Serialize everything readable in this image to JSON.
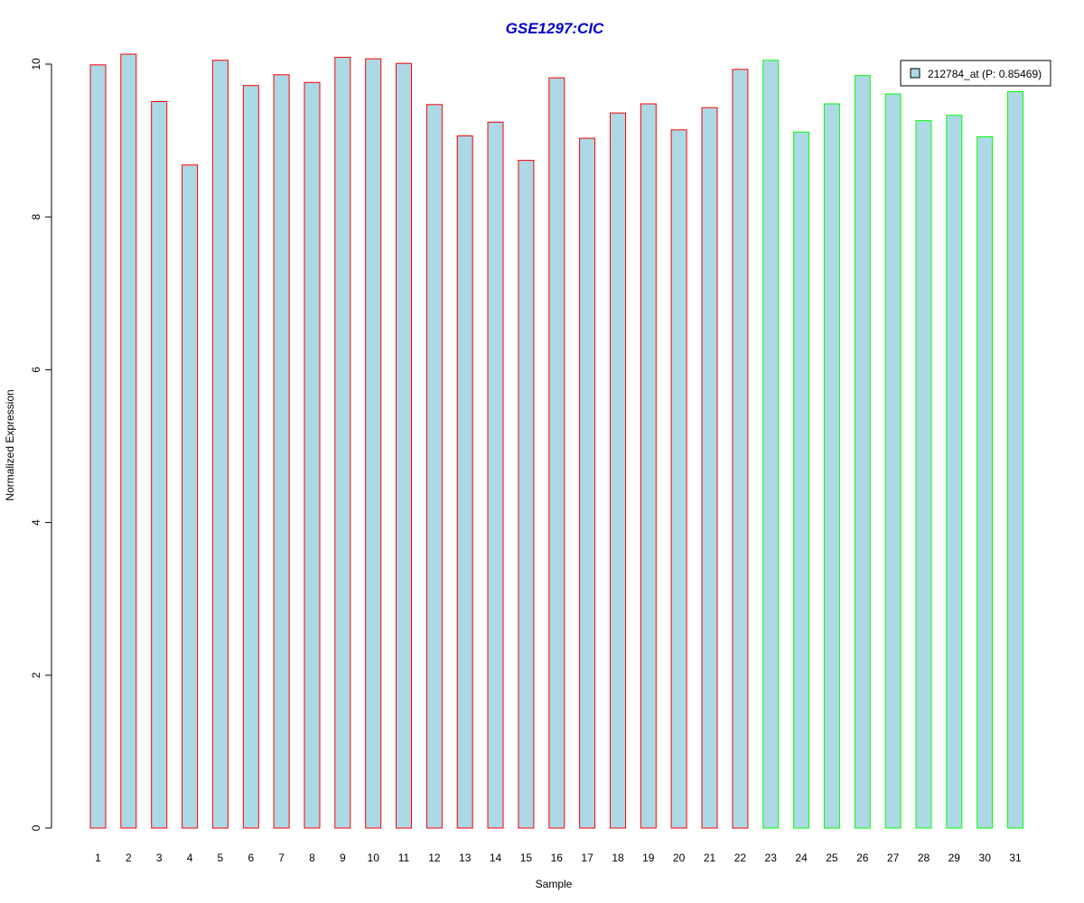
{
  "chart_data": {
    "type": "bar",
    "title": "GSE1297:CIC",
    "xlabel": "Sample",
    "ylabel": "Normalized Expression",
    "ylim": [
      0,
      10
    ],
    "yticks": [
      0,
      2,
      4,
      6,
      8,
      10
    ],
    "grid": false,
    "legend_position": "top-right",
    "legend_label": "212784_at (P: 0.85469)",
    "categories": [
      "1",
      "2",
      "3",
      "4",
      "5",
      "6",
      "7",
      "8",
      "9",
      "10",
      "11",
      "12",
      "13",
      "14",
      "15",
      "16",
      "17",
      "18",
      "19",
      "20",
      "21",
      "22",
      "23",
      "24",
      "25",
      "26",
      "27",
      "28",
      "29",
      "30",
      "31"
    ],
    "values": [
      9.99,
      10.13,
      9.51,
      8.68,
      10.05,
      9.72,
      9.86,
      9.76,
      10.09,
      10.07,
      10.01,
      9.47,
      9.06,
      9.24,
      8.74,
      9.82,
      9.03,
      9.36,
      9.48,
      9.14,
      9.43,
      9.93,
      10.05,
      9.11,
      9.48,
      9.85,
      9.61,
      9.26,
      9.33,
      9.05,
      9.64
    ],
    "groups": [
      "red",
      "red",
      "red",
      "red",
      "red",
      "red",
      "red",
      "red",
      "red",
      "red",
      "red",
      "red",
      "red",
      "red",
      "red",
      "red",
      "red",
      "red",
      "red",
      "red",
      "red",
      "red",
      "green",
      "green",
      "green",
      "green",
      "green",
      "green",
      "green",
      "green",
      "green"
    ]
  },
  "colors": {
    "bar_fill": "#add8e6",
    "border_red": "#ff0000",
    "border_green": "#00ff00",
    "title": "#0000cd",
    "axis": "#000000"
  }
}
